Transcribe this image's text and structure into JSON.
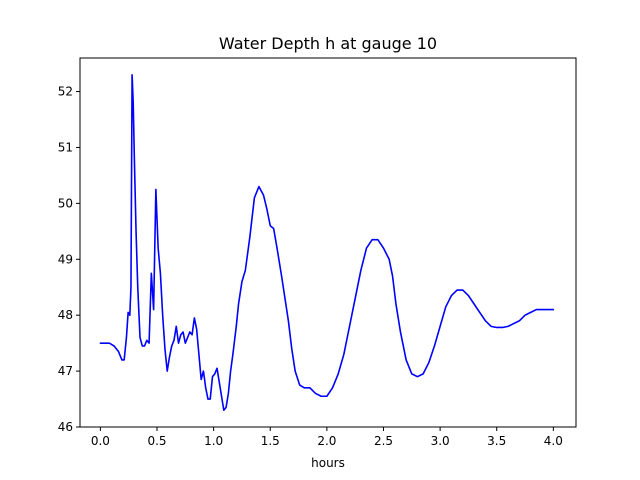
{
  "chart_data": {
    "type": "line",
    "title": "Water Depth h at gauge 10",
    "xlabel": "hours",
    "ylabel": "",
    "xlim": [
      -0.18,
      4.2
    ],
    "ylim": [
      46.0,
      52.6
    ],
    "xticks": [
      0.0,
      0.5,
      1.0,
      1.5,
      2.0,
      2.5,
      3.0,
      3.5,
      4.0
    ],
    "xtick_labels": [
      "0.0",
      "0.5",
      "1.0",
      "1.5",
      "2.0",
      "2.5",
      "3.0",
      "3.5",
      "4.0"
    ],
    "yticks": [
      46,
      47,
      48,
      49,
      50,
      51,
      52
    ],
    "ytick_labels": [
      "46",
      "47",
      "48",
      "49",
      "50",
      "51",
      "52"
    ],
    "grid": false,
    "series": [
      {
        "color": "#0000ff",
        "x": [
          0.0,
          0.08,
          0.12,
          0.16,
          0.19,
          0.21,
          0.23,
          0.245,
          0.26,
          0.27,
          0.28,
          0.29,
          0.3,
          0.315,
          0.33,
          0.35,
          0.37,
          0.39,
          0.41,
          0.43,
          0.45,
          0.47,
          0.49,
          0.51,
          0.53,
          0.55,
          0.57,
          0.59,
          0.61,
          0.63,
          0.65,
          0.67,
          0.69,
          0.71,
          0.73,
          0.75,
          0.77,
          0.79,
          0.81,
          0.83,
          0.85,
          0.87,
          0.89,
          0.91,
          0.93,
          0.95,
          0.97,
          0.99,
          1.01,
          1.03,
          1.05,
          1.07,
          1.09,
          1.11,
          1.13,
          1.15,
          1.17,
          1.2,
          1.22,
          1.25,
          1.28,
          1.32,
          1.36,
          1.4,
          1.44,
          1.47,
          1.5,
          1.53,
          1.56,
          1.6,
          1.63,
          1.66,
          1.69,
          1.72,
          1.76,
          1.8,
          1.85,
          1.9,
          1.95,
          2.0,
          2.05,
          2.1,
          2.15,
          2.2,
          2.25,
          2.3,
          2.35,
          2.4,
          2.45,
          2.5,
          2.55,
          2.58,
          2.61,
          2.65,
          2.7,
          2.75,
          2.8,
          2.85,
          2.9,
          2.95,
          3.0,
          3.05,
          3.1,
          3.15,
          3.2,
          3.25,
          3.3,
          3.35,
          3.4,
          3.45,
          3.5,
          3.55,
          3.6,
          3.65,
          3.7,
          3.75,
          3.8,
          3.85,
          3.9,
          3.95,
          4.0
        ],
        "y": [
          47.5,
          47.5,
          47.45,
          47.35,
          47.2,
          47.2,
          47.6,
          48.05,
          48.0,
          48.5,
          52.3,
          51.8,
          50.8,
          49.5,
          48.5,
          47.6,
          47.45,
          47.45,
          47.55,
          47.5,
          48.75,
          48.1,
          50.25,
          49.2,
          48.75,
          48.0,
          47.4,
          47.0,
          47.25,
          47.45,
          47.55,
          47.8,
          47.5,
          47.65,
          47.7,
          47.5,
          47.6,
          47.7,
          47.65,
          47.95,
          47.75,
          47.3,
          46.85,
          47.0,
          46.7,
          46.5,
          46.5,
          46.9,
          46.95,
          47.05,
          46.8,
          46.55,
          46.3,
          46.35,
          46.6,
          47.0,
          47.3,
          47.8,
          48.2,
          48.6,
          48.8,
          49.4,
          50.1,
          50.3,
          50.15,
          49.9,
          49.6,
          49.55,
          49.2,
          48.7,
          48.3,
          47.9,
          47.4,
          47.0,
          46.75,
          46.7,
          46.7,
          46.6,
          46.55,
          46.55,
          46.7,
          46.95,
          47.3,
          47.8,
          48.3,
          48.8,
          49.2,
          49.35,
          49.35,
          49.2,
          49.0,
          48.7,
          48.2,
          47.7,
          47.2,
          46.95,
          46.9,
          46.95,
          47.15,
          47.45,
          47.8,
          48.15,
          48.35,
          48.45,
          48.45,
          48.35,
          48.2,
          48.05,
          47.9,
          47.8,
          47.78,
          47.78,
          47.8,
          47.85,
          47.9,
          48.0,
          48.05,
          48.1,
          48.1,
          48.1,
          48.1
        ]
      }
    ]
  }
}
